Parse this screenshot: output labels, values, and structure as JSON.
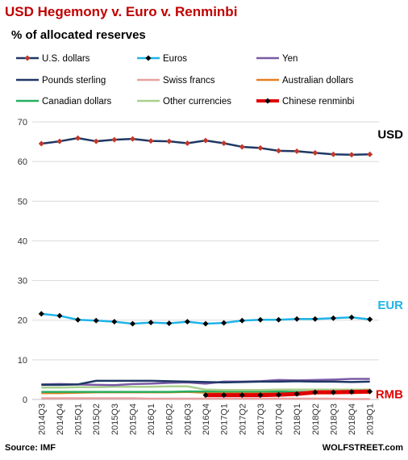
{
  "chart_data": {
    "type": "line",
    "title": "USD Hegemony v. Euro v. Renminbi",
    "subtitle": "% of allocated reserves",
    "source": "Source: IMF",
    "credit": "WOLFSTREET.com",
    "ylim": [
      0,
      70
    ],
    "yticks": [
      0,
      10,
      20,
      30,
      40,
      50,
      60,
      70
    ],
    "grid": true,
    "legend_position": "top",
    "categories": [
      "2014Q3",
      "2014Q4",
      "2015Q1",
      "2015Q2",
      "2015Q3",
      "2015Q4",
      "2016Q1",
      "2016Q2",
      "2016Q3",
      "2016Q4",
      "2017Q1",
      "2017Q2",
      "2017Q3",
      "2017Q4",
      "2018Q1",
      "2018Q2",
      "2018Q3",
      "2018Q4",
      "2019Q1"
    ],
    "series": [
      {
        "name": "U.S. dollars",
        "color": "#1f3864",
        "marker_color": "#c0392b",
        "values": [
          64.5,
          65.1,
          65.9,
          65.1,
          65.5,
          65.7,
          65.2,
          65.1,
          64.6,
          65.3,
          64.6,
          63.7,
          63.4,
          62.7,
          62.6,
          62.2,
          61.8,
          61.7,
          61.8
        ]
      },
      {
        "name": "Euros",
        "color": "#1fb4e8",
        "marker_color": "#000000",
        "values": [
          21.6,
          21.1,
          20.1,
          19.9,
          19.6,
          19.1,
          19.4,
          19.2,
          19.6,
          19.1,
          19.3,
          19.9,
          20.1,
          20.1,
          20.3,
          20.3,
          20.5,
          20.7,
          20.2
        ]
      },
      {
        "name": "Yen",
        "color": "#7b5aa6",
        "values": [
          3.8,
          3.9,
          3.8,
          3.7,
          3.6,
          3.9,
          4.0,
          4.2,
          4.3,
          4.0,
          4.5,
          4.5,
          4.6,
          4.9,
          4.8,
          4.9,
          5.0,
          5.2,
          5.2
        ]
      },
      {
        "name": "Pounds sterling",
        "color": "#1f3864",
        "values": [
          3.7,
          3.7,
          3.8,
          4.7,
          4.7,
          4.7,
          4.7,
          4.6,
          4.5,
          4.4,
          4.3,
          4.4,
          4.5,
          4.5,
          4.6,
          4.5,
          4.5,
          4.4,
          4.5
        ]
      },
      {
        "name": "Swiss francs",
        "color": "#e8a0a0",
        "values": [
          0.3,
          0.3,
          0.3,
          0.3,
          0.3,
          0.3,
          0.2,
          0.2,
          0.2,
          0.2,
          0.2,
          0.2,
          0.2,
          0.2,
          0.2,
          0.2,
          0.2,
          0.1,
          0.1
        ]
      },
      {
        "name": "Australian dollars",
        "color": "#e67e22",
        "values": [
          1.6,
          1.6,
          1.7,
          1.8,
          1.8,
          1.8,
          1.8,
          1.8,
          1.9,
          1.7,
          1.8,
          1.8,
          1.8,
          1.8,
          1.8,
          1.7,
          1.7,
          1.6,
          1.7
        ]
      },
      {
        "name": "Canadian dollars",
        "color": "#27ae60",
        "values": [
          1.9,
          1.9,
          1.9,
          1.9,
          1.9,
          1.9,
          1.9,
          1.9,
          2.0,
          2.0,
          2.0,
          2.0,
          2.0,
          2.0,
          1.9,
          1.9,
          1.9,
          1.8,
          1.9
        ]
      },
      {
        "name": "Other currencies",
        "color": "#a9d08e",
        "values": [
          3.0,
          3.0,
          3.1,
          3.1,
          3.2,
          3.2,
          3.2,
          3.3,
          3.3,
          2.5,
          2.4,
          2.4,
          2.4,
          2.5,
          2.5,
          2.5,
          2.5,
          2.5,
          2.5
        ]
      },
      {
        "name": "Chinese renminbi",
        "color": "#e00000",
        "marker_color": "#000000",
        "values": [
          null,
          null,
          null,
          null,
          null,
          null,
          null,
          null,
          null,
          1.1,
          1.1,
          1.1,
          1.1,
          1.2,
          1.4,
          1.8,
          1.8,
          1.9,
          2.0
        ]
      }
    ],
    "annotations": [
      {
        "text": "USD",
        "color": "#000000",
        "category_index": 18,
        "y": 67
      },
      {
        "text": "EUR",
        "color": "#1fb4e8",
        "category_index": 18,
        "y": 24
      },
      {
        "text": "RMB",
        "color": "#e00000",
        "category_index": 18,
        "y": 1.5
      }
    ]
  }
}
